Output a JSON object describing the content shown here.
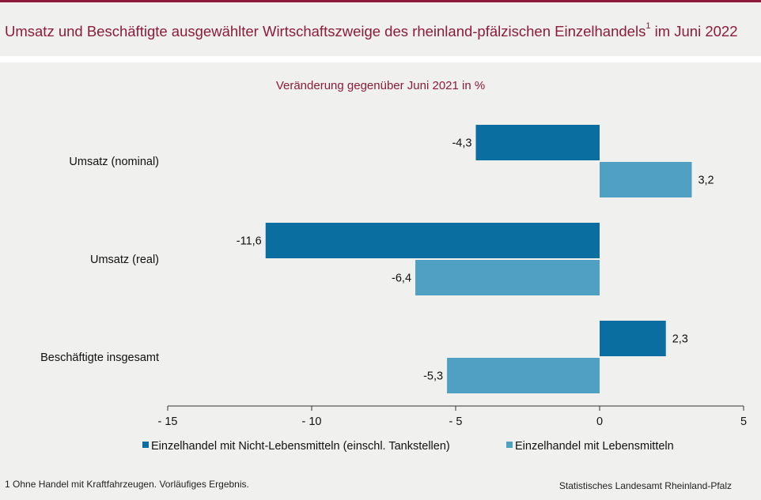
{
  "title_main": "Umsatz und Beschäftigte ausgewählter Wirtschaftszweige des rheinland-pfälzischen Einzelhandels",
  "title_sup": "1",
  "title_tail": " im Juni 2022",
  "subtitle": "Veränderung gegenüber Juni 2021 in %",
  "footnote": "1 Ohne Handel mit Kraftfahrzeugen. Vorläufiges Ergebnis.",
  "source": "Statistisches Landesamt Rheinland-Pfalz",
  "colors": {
    "series1": "#0a6ea0",
    "series2": "#4fa0c3",
    "title": "#8c1c3a"
  },
  "chart_data": {
    "type": "bar",
    "orientation": "horizontal",
    "categories": [
      "Umsatz (nominal)",
      "Umsatz (real)",
      "Beschäftigte insgesamt"
    ],
    "series": [
      {
        "name": "Einzelhandel mit Nicht-Lebensmitteln (einschl. Tankstellen)",
        "values": [
          -4.3,
          -11.6,
          2.3
        ],
        "labels": [
          "-4,3",
          "-11,6",
          "2,3"
        ]
      },
      {
        "name": "Einzelhandel mit Lebensmitteln",
        "values": [
          3.2,
          -6.4,
          -5.3
        ],
        "labels": [
          "3,2",
          "-6,4",
          "-5,3"
        ]
      }
    ],
    "xlim": [
      -15,
      5
    ],
    "xticks": [
      -15,
      -10,
      -5,
      0,
      5
    ],
    "xtick_labels": [
      "- 15",
      "- 10",
      "- 5",
      "0",
      "5"
    ],
    "legend_position": "bottom"
  }
}
